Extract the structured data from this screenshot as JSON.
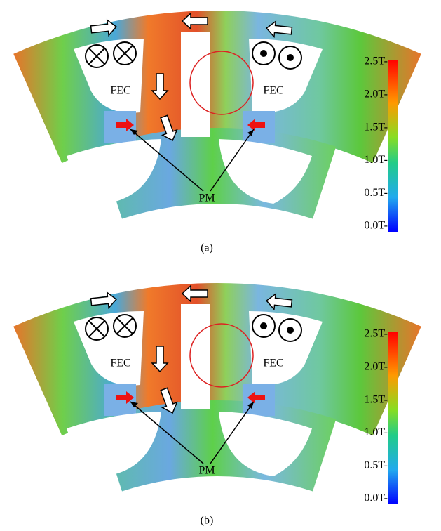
{
  "panels": [
    {
      "caption": "(a)",
      "fec_left": "FEC",
      "fec_right": "FEC",
      "pm": "PM",
      "colorbar_ticks": [
        "2.5T-",
        "2.0T-",
        "1.5T-",
        "1.0T-",
        "0.5T-",
        "0.0T-"
      ]
    },
    {
      "caption": "(b)",
      "fec_left": "FEC",
      "fec_right": "FEC",
      "pm": "PM",
      "colorbar_ticks": [
        "2.5T-",
        "2.0T-",
        "1.5T-",
        "1.0T-",
        "0.5T-",
        "0.0T-"
      ]
    }
  ]
}
